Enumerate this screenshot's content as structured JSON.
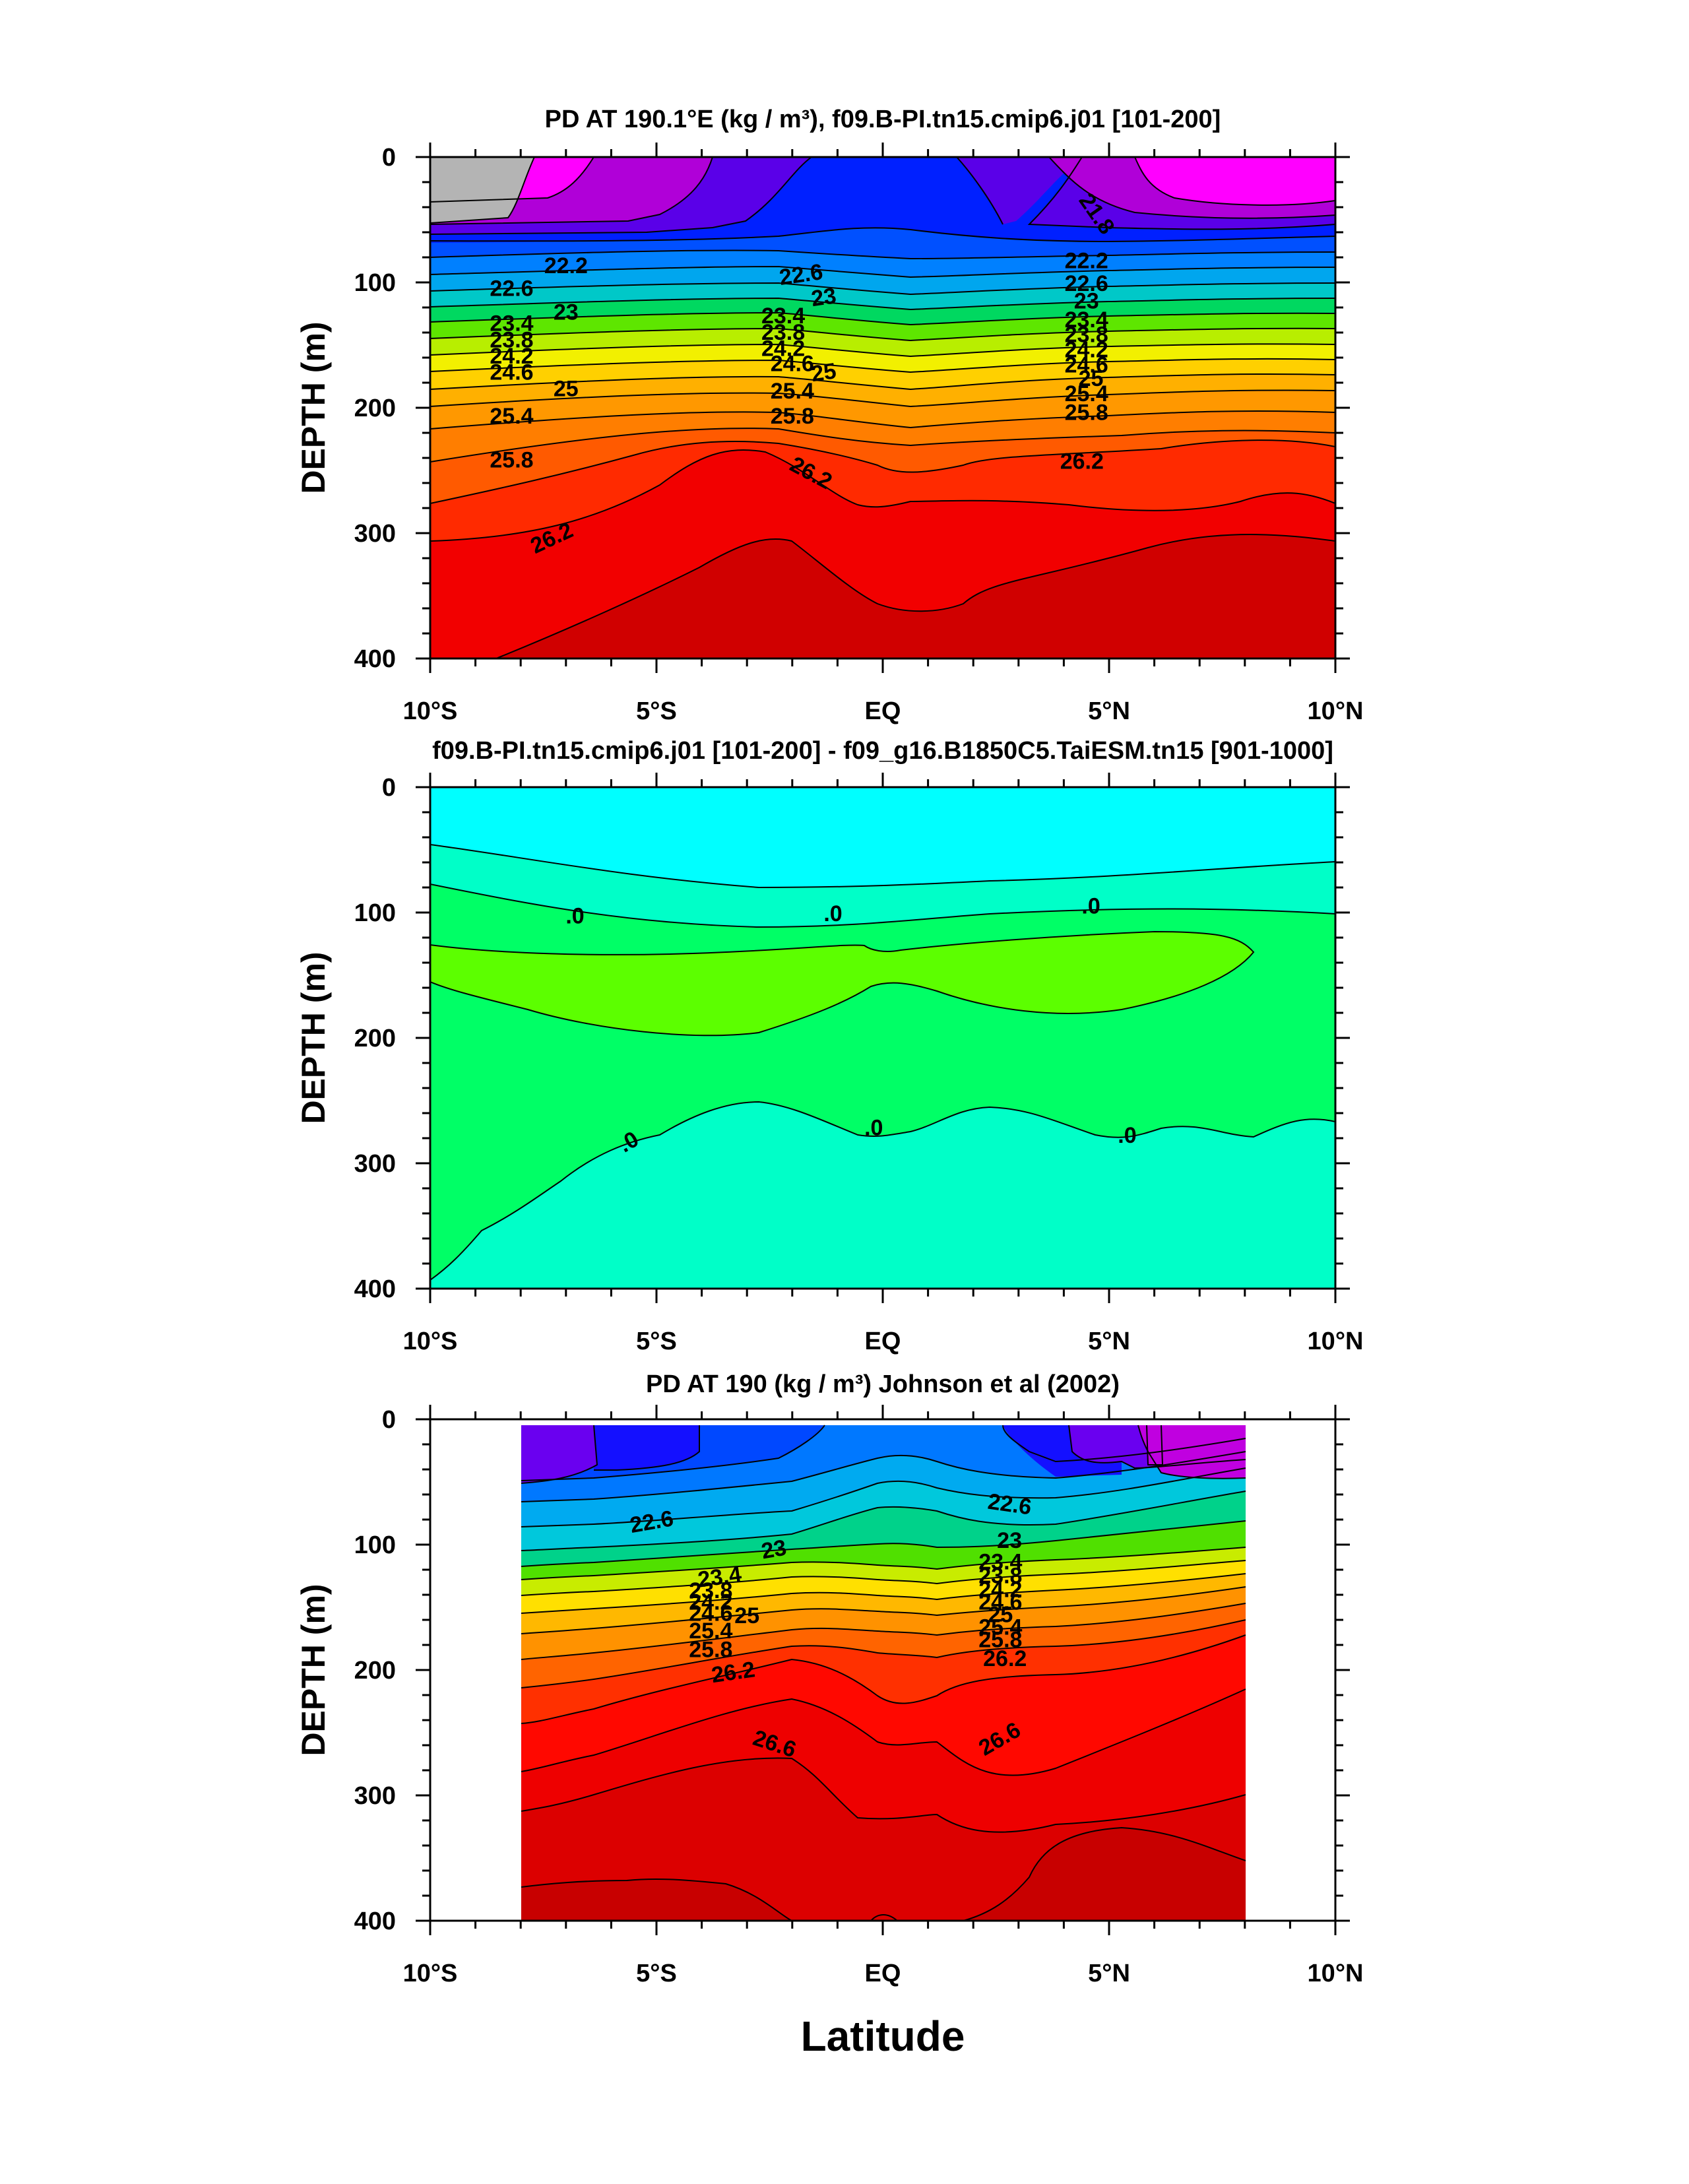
{
  "figure": {
    "xlabel": "Latitude"
  },
  "chart_data": [
    {
      "type": "heatmap",
      "title": "PD AT 190.1°E (kg / m³), f09.B-PI.tn15.cmip6.j01 [101-200]",
      "ylabel": "DEPTH (m)",
      "xlabel": "Latitude",
      "xlim": [
        -10,
        10
      ],
      "ylim": [
        0,
        400
      ],
      "x_ticks": [
        -10,
        -5,
        0,
        5,
        10
      ],
      "x_ticklabels": [
        "10°S",
        "5°S",
        "EQ",
        "5°N",
        "10°N"
      ],
      "y_ticks": [
        0,
        100,
        200,
        300,
        400
      ],
      "y_ticklabels": [
        "0",
        "100",
        "200",
        "300",
        "400"
      ],
      "contour_labels": [
        {
          "lat": -7.0,
          "depth": 88,
          "text": "22.2",
          "angle": 0
        },
        {
          "lat": 4.5,
          "depth": 84,
          "text": "22.2",
          "angle": 0
        },
        {
          "lat": -8.2,
          "depth": 106,
          "text": "22.6",
          "angle": 0
        },
        {
          "lat": -1.8,
          "depth": 95,
          "text": "22.6",
          "angle": -8
        },
        {
          "lat": 4.5,
          "depth": 102,
          "text": "22.6",
          "angle": 0
        },
        {
          "lat": -7.0,
          "depth": 125,
          "text": "23",
          "angle": 0
        },
        {
          "lat": -1.3,
          "depth": 113,
          "text": "23",
          "angle": -8
        },
        {
          "lat": 4.5,
          "depth": 116,
          "text": "23",
          "angle": 0
        },
        {
          "lat": -8.2,
          "depth": 134,
          "text": "23.4",
          "angle": 0
        },
        {
          "lat": -2.2,
          "depth": 128,
          "text": "23.4",
          "angle": 0
        },
        {
          "lat": 4.5,
          "depth": 131,
          "text": "23.4",
          "angle": 0
        },
        {
          "lat": -8.2,
          "depth": 147,
          "text": "23.8",
          "angle": 0
        },
        {
          "lat": -2.2,
          "depth": 141,
          "text": "23.8",
          "angle": 0
        },
        {
          "lat": 4.5,
          "depth": 143,
          "text": "23.8",
          "angle": 0
        },
        {
          "lat": -8.2,
          "depth": 160,
          "text": "24.2",
          "angle": 0
        },
        {
          "lat": -2.2,
          "depth": 154,
          "text": "24.2",
          "angle": 0
        },
        {
          "lat": 4.5,
          "depth": 155,
          "text": "24.2",
          "angle": 0
        },
        {
          "lat": -8.2,
          "depth": 173,
          "text": "24.6",
          "angle": 0
        },
        {
          "lat": -2.0,
          "depth": 166,
          "text": "24.6",
          "angle": 0
        },
        {
          "lat": 4.5,
          "depth": 167,
          "text": "24.6",
          "angle": 0
        },
        {
          "lat": -7.0,
          "depth": 186,
          "text": "25",
          "angle": 0
        },
        {
          "lat": -1.3,
          "depth": 173,
          "text": "25",
          "angle": -8
        },
        {
          "lat": 4.6,
          "depth": 178,
          "text": "25",
          "angle": 0
        },
        {
          "lat": -8.2,
          "depth": 208,
          "text": "25.4",
          "angle": 0
        },
        {
          "lat": -2.0,
          "depth": 188,
          "text": "25.4",
          "angle": 0
        },
        {
          "lat": 4.5,
          "depth": 190,
          "text": "25.4",
          "angle": 0
        },
        {
          "lat": -8.2,
          "depth": 243,
          "text": "25.8",
          "angle": 0
        },
        {
          "lat": -2.0,
          "depth": 208,
          "text": "25.8",
          "angle": 0
        },
        {
          "lat": 4.5,
          "depth": 205,
          "text": "25.8",
          "angle": 0
        },
        {
          "lat": -1.6,
          "depth": 253,
          "text": "26.2",
          "angle": 28
        },
        {
          "lat": 4.4,
          "depth": 244,
          "text": "26.2",
          "angle": 0
        },
        {
          "lat": -7.3,
          "depth": 305,
          "text": "26.2",
          "angle": -25
        },
        {
          "lat": 4.7,
          "depth": 46,
          "text": "21.8",
          "angle": 55
        }
      ]
    },
    {
      "type": "heatmap",
      "title": "f09.B-PI.tn15.cmip6.j01 [101-200] - f09_g16.B1850C5.TaiESM.tn15 [901-1000]",
      "ylabel": "DEPTH (m)",
      "xlabel": "Latitude",
      "xlim": [
        -10,
        10
      ],
      "ylim": [
        0,
        400
      ],
      "x_ticks": [
        -10,
        -5,
        0,
        5,
        10
      ],
      "x_ticklabels": [
        "10°S",
        "5°S",
        "EQ",
        "5°N",
        "10°N"
      ],
      "y_ticks": [
        0,
        100,
        200,
        300,
        400
      ],
      "y_ticklabels": [
        "0",
        "100",
        "200",
        "300",
        "400"
      ],
      "contour_labels": [
        {
          "lat": -6.8,
          "depth": 104,
          "text": ".0",
          "angle": 0
        },
        {
          "lat": -1.1,
          "depth": 102,
          "text": ".0",
          "angle": 0
        },
        {
          "lat": 4.6,
          "depth": 96,
          "text": ".0",
          "angle": 0
        },
        {
          "lat": -5.6,
          "depth": 284,
          "text": ".0",
          "angle": -30
        },
        {
          "lat": -0.2,
          "depth": 273,
          "text": ".0",
          "angle": 0
        },
        {
          "lat": 5.4,
          "depth": 279,
          "text": ".0",
          "angle": 0
        }
      ]
    },
    {
      "type": "heatmap",
      "title": "PD AT 190 (kg / m³) Johnson et al (2002)",
      "ylabel": "DEPTH (m)",
      "xlabel": "Latitude",
      "xlim": [
        -10,
        10
      ],
      "ylim": [
        0,
        400
      ],
      "data_extent_lat": [
        -8,
        8
      ],
      "x_ticks": [
        -10,
        -5,
        0,
        5,
        10
      ],
      "x_ticklabels": [
        "10°S",
        "5°S",
        "EQ",
        "5°N",
        "10°N"
      ],
      "y_ticks": [
        0,
        100,
        200,
        300,
        400
      ],
      "y_ticklabels": [
        "0",
        "100",
        "200",
        "300",
        "400"
      ],
      "contour_labels": [
        {
          "lat": -5.1,
          "depth": 83,
          "text": "22.6",
          "angle": -10
        },
        {
          "lat": 2.8,
          "depth": 69,
          "text": "22.6",
          "angle": 8
        },
        {
          "lat": -2.4,
          "depth": 105,
          "text": "23",
          "angle": -10
        },
        {
          "lat": 2.8,
          "depth": 98,
          "text": "23",
          "angle": 0
        },
        {
          "lat": -3.6,
          "depth": 127,
          "text": "23.4",
          "angle": -8
        },
        {
          "lat": 2.6,
          "depth": 115,
          "text": "23.4",
          "angle": 0
        },
        {
          "lat": -3.8,
          "depth": 138,
          "text": "23.8",
          "angle": 0
        },
        {
          "lat": 2.6,
          "depth": 126,
          "text": "23.8",
          "angle": 0
        },
        {
          "lat": -3.8,
          "depth": 147,
          "text": "24.2",
          "angle": 0
        },
        {
          "lat": 2.6,
          "depth": 137,
          "text": "24.2",
          "angle": 0
        },
        {
          "lat": -3.8,
          "depth": 156,
          "text": "24.6",
          "angle": 0
        },
        {
          "lat": 2.6,
          "depth": 147,
          "text": "24.6",
          "angle": 0
        },
        {
          "lat": -3.0,
          "depth": 158,
          "text": "25",
          "angle": 0
        },
        {
          "lat": 2.6,
          "depth": 157,
          "text": "25",
          "angle": 0
        },
        {
          "lat": -3.8,
          "depth": 170,
          "text": "25.4",
          "angle": 0
        },
        {
          "lat": 2.6,
          "depth": 167,
          "text": "25.4",
          "angle": 0
        },
        {
          "lat": -3.8,
          "depth": 185,
          "text": "25.8",
          "angle": 0
        },
        {
          "lat": 2.6,
          "depth": 177,
          "text": "25.8",
          "angle": 0
        },
        {
          "lat": -3.3,
          "depth": 203,
          "text": "26.2",
          "angle": -8
        },
        {
          "lat": 2.7,
          "depth": 192,
          "text": "26.2",
          "angle": 0
        },
        {
          "lat": -2.4,
          "depth": 260,
          "text": "26.6",
          "angle": 18
        },
        {
          "lat": 2.6,
          "depth": 256,
          "text": "26.6",
          "angle": -30
        }
      ]
    }
  ]
}
